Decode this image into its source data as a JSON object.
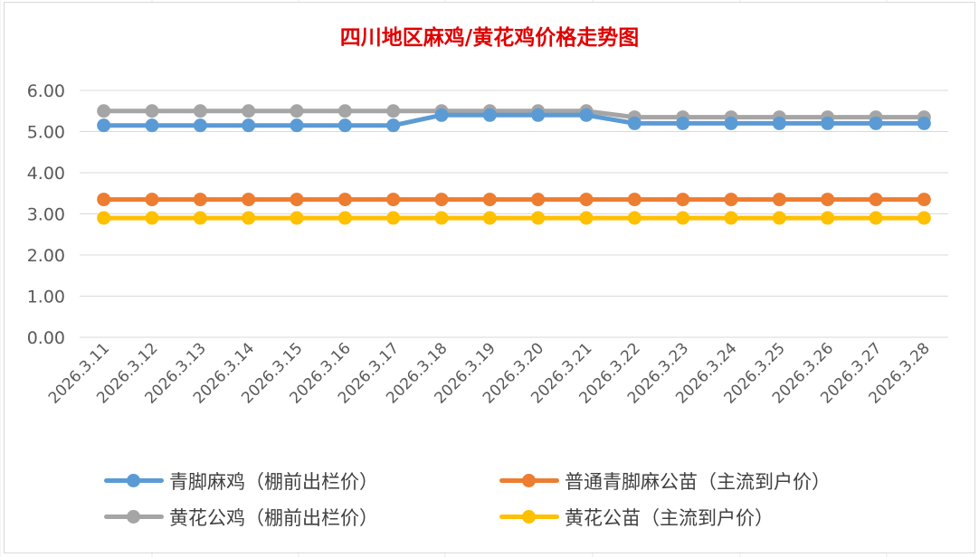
{
  "chart_data": {
    "type": "line",
    "title": "四川地区麻鸡/黄花鸡价格走势图",
    "xlabel": "",
    "ylabel": "",
    "ylim": [
      0,
      6
    ],
    "yticks": [
      "0.00",
      "1.00",
      "2.00",
      "3.00",
      "4.00",
      "5.00",
      "6.00"
    ],
    "grid": true,
    "legend_position": "bottom",
    "categories": [
      "2026.3.11",
      "2026.3.12",
      "2026.3.13",
      "2026.3.14",
      "2026.3.15",
      "2026.3.16",
      "2026.3.17",
      "2026.3.18",
      "2026.3.19",
      "2026.3.20",
      "2026.3.21",
      "2026.3.22",
      "2026.3.23",
      "2026.3.24",
      "2026.3.25",
      "2026.3.26",
      "2026.3.27",
      "2026.3.28"
    ],
    "series": [
      {
        "name": "青脚麻鸡（棚前出栏价）",
        "color": "#5b9bd5",
        "values": [
          5.15,
          5.15,
          5.15,
          5.15,
          5.15,
          5.15,
          5.15,
          5.4,
          5.4,
          5.4,
          5.4,
          5.2,
          5.2,
          5.2,
          5.2,
          5.2,
          5.2,
          5.2
        ]
      },
      {
        "name": "普通青脚麻公苗（主流到户价）",
        "color": "#ed7d31",
        "values": [
          3.35,
          3.35,
          3.35,
          3.35,
          3.35,
          3.35,
          3.35,
          3.35,
          3.35,
          3.35,
          3.35,
          3.35,
          3.35,
          3.35,
          3.35,
          3.35,
          3.35,
          3.35
        ]
      },
      {
        "name": "黄花公鸡（棚前出栏价）",
        "color": "#a5a5a5",
        "values": [
          5.5,
          5.5,
          5.5,
          5.5,
          5.5,
          5.5,
          5.5,
          5.5,
          5.5,
          5.5,
          5.5,
          5.35,
          5.35,
          5.35,
          5.35,
          5.35,
          5.35,
          5.35
        ]
      },
      {
        "name": "黄花公苗（主流到户价）",
        "color": "#ffc000",
        "values": [
          2.9,
          2.9,
          2.9,
          2.9,
          2.9,
          2.9,
          2.9,
          2.9,
          2.9,
          2.9,
          2.9,
          2.9,
          2.9,
          2.9,
          2.9,
          2.9,
          2.9,
          2.9
        ]
      }
    ],
    "draw_order": [
      1,
      3,
      2,
      0
    ]
  }
}
